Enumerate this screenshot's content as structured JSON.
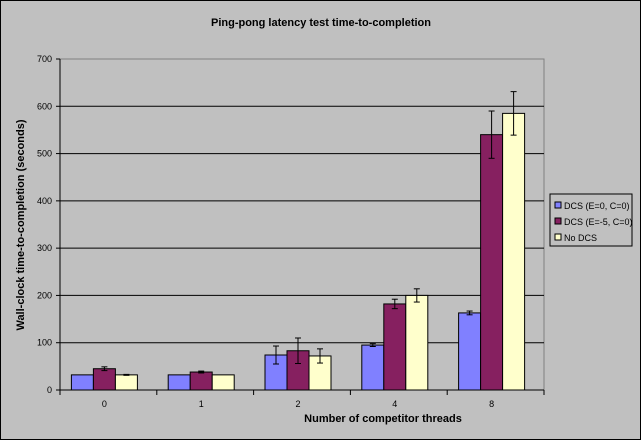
{
  "chart_data": {
    "type": "bar",
    "title": "Ping-pong latency test time-to-completion",
    "xlabel": "Number of competitor threads",
    "ylabel": "Wall-clock time-to-completion (seconds)",
    "ylim": [
      0,
      700
    ],
    "yticks": [
      0,
      100,
      200,
      300,
      400,
      500,
      600,
      700
    ],
    "grid": true,
    "legend_position": "right",
    "categories": [
      "0",
      "1",
      "2",
      "4",
      "8"
    ],
    "series": [
      {
        "name": "DCS (E=0, C=0)",
        "color": "#8080ff",
        "values": [
          32,
          32,
          74,
          95,
          163
        ],
        "errors": [
          0,
          0,
          19,
          3,
          4
        ]
      },
      {
        "name": "DCS (E=-5, C=0)",
        "color": "#862060",
        "values": [
          45,
          38,
          83,
          182,
          540
        ],
        "errors": [
          4,
          2,
          27,
          10,
          50
        ]
      },
      {
        "name": "No DCS",
        "color": "#ffffcc",
        "values": [
          32,
          32,
          72,
          200,
          585
        ],
        "errors": [
          1,
          0,
          15,
          14,
          46
        ]
      }
    ]
  }
}
